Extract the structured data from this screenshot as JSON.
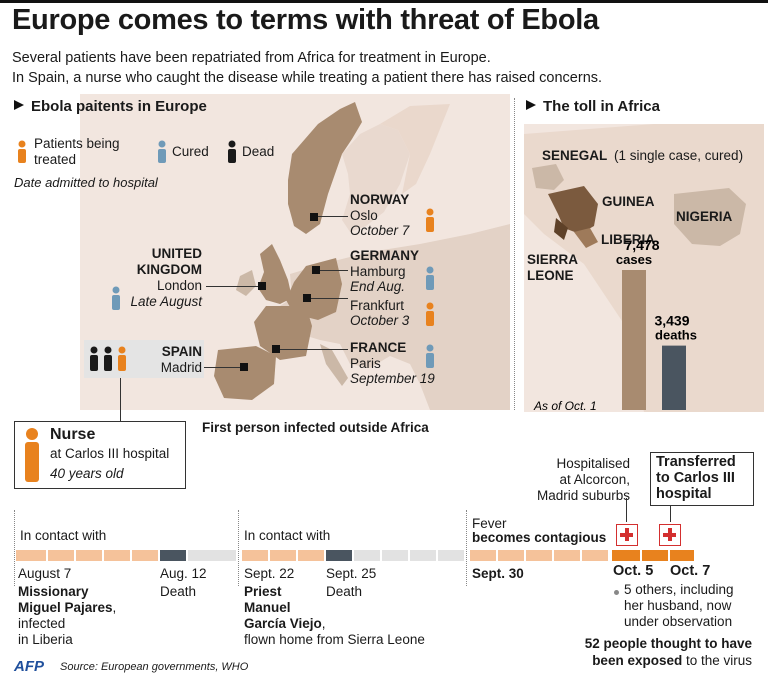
{
  "title": "Europe comes to terms with threat of Ebola",
  "subtitle_1": "Several patients have been repatriated from Africa for treatment in Europe.",
  "subtitle_2": "In Spain, a nurse who caught the disease while treating a patient there has raised concerns.",
  "colors": {
    "treated": "#e8821e",
    "cured": "#6f9ab8",
    "dead": "#1a1a1a",
    "land_map": "#a88b70",
    "sea": "#f2e6df",
    "bar_cases": "#a88b70",
    "bar_deaths": "#4a5560"
  },
  "europe": {
    "heading": "Ebola paitents in Europe",
    "legend": {
      "treated_line1": "Patients being",
      "treated_line2": "treated",
      "cured": "Cured",
      "dead": "Dead",
      "note": "Date admitted to hospital"
    },
    "norway": {
      "country": "NORWAY",
      "city": "Oslo",
      "date": "October 7"
    },
    "germany": {
      "country": "GERMANY",
      "city1": "Hamburg",
      "date1": "End Aug.",
      "city2": "Frankfurt",
      "date2": "October 3"
    },
    "uk": {
      "country1": "UNITED",
      "country2": "KINGDOM",
      "city": "London",
      "date": "Late August"
    },
    "spain": {
      "country": "SPAIN",
      "city": "Madrid"
    },
    "france": {
      "country": "FRANCE",
      "city": "Paris",
      "date": "September 19"
    },
    "first_infected": "First person infected outside Africa"
  },
  "africa": {
    "heading": "The toll in Africa",
    "senegal": "SENEGAL",
    "senegal_note": "(1 single case, cured)",
    "guinea": "GUINEA",
    "liberia": "LIBERIA",
    "sierra1": "SIERRA",
    "sierra2": "LEONE",
    "nigeria": "NIGERIA",
    "chart_data": {
      "type": "bar",
      "categories": [
        "cases",
        "deaths"
      ],
      "values": [
        7478,
        3439
      ],
      "labels": [
        "7,478",
        "3,439"
      ],
      "note": "As of Oct. 1"
    }
  },
  "nurse": {
    "title": "Nurse",
    "line1": "at Carlos III hospital",
    "line2": "40 years old"
  },
  "timeline": {
    "contact1": "In contact with",
    "date_aug7": "August 7",
    "missionary1": "Missionary",
    "missionary2": "Miguel Pajares",
    "missionary3": ",",
    "infected1": "infected",
    "infected2": "in Liberia",
    "date_aug12": "Aug. 12",
    "death1": "Death",
    "contact2": "In contact with",
    "date_sept22": "Sept. 22",
    "priest1": "Priest",
    "priest2": "Manuel",
    "priest3": "García Viejo",
    "priest4": ",",
    "flown": "flown home from Sierra Leone",
    "date_sept25": "Sept. 25",
    "death2": "Death",
    "fever": "Fever",
    "contagious": "becomes contagious",
    "date_sept30": "Sept. 30",
    "hosp1": "Hospitalised",
    "hosp2": "at Alcorcon,",
    "hosp3": "Madrid suburbs",
    "transfer1": "Transferred",
    "transfer2": "to Carlos III",
    "transfer3": "hospital",
    "date_oct5": "Oct. 5",
    "date_oct7": "Oct. 7",
    "others1": "5 others, including",
    "others2": "her husband, now",
    "others3": "under observation",
    "exposed1": "52 people thought to have",
    "exposed2": "been exposed",
    "exposed3": " to the virus"
  },
  "footer": {
    "logo": "AFP",
    "source": "Source: European governments, WHO"
  }
}
